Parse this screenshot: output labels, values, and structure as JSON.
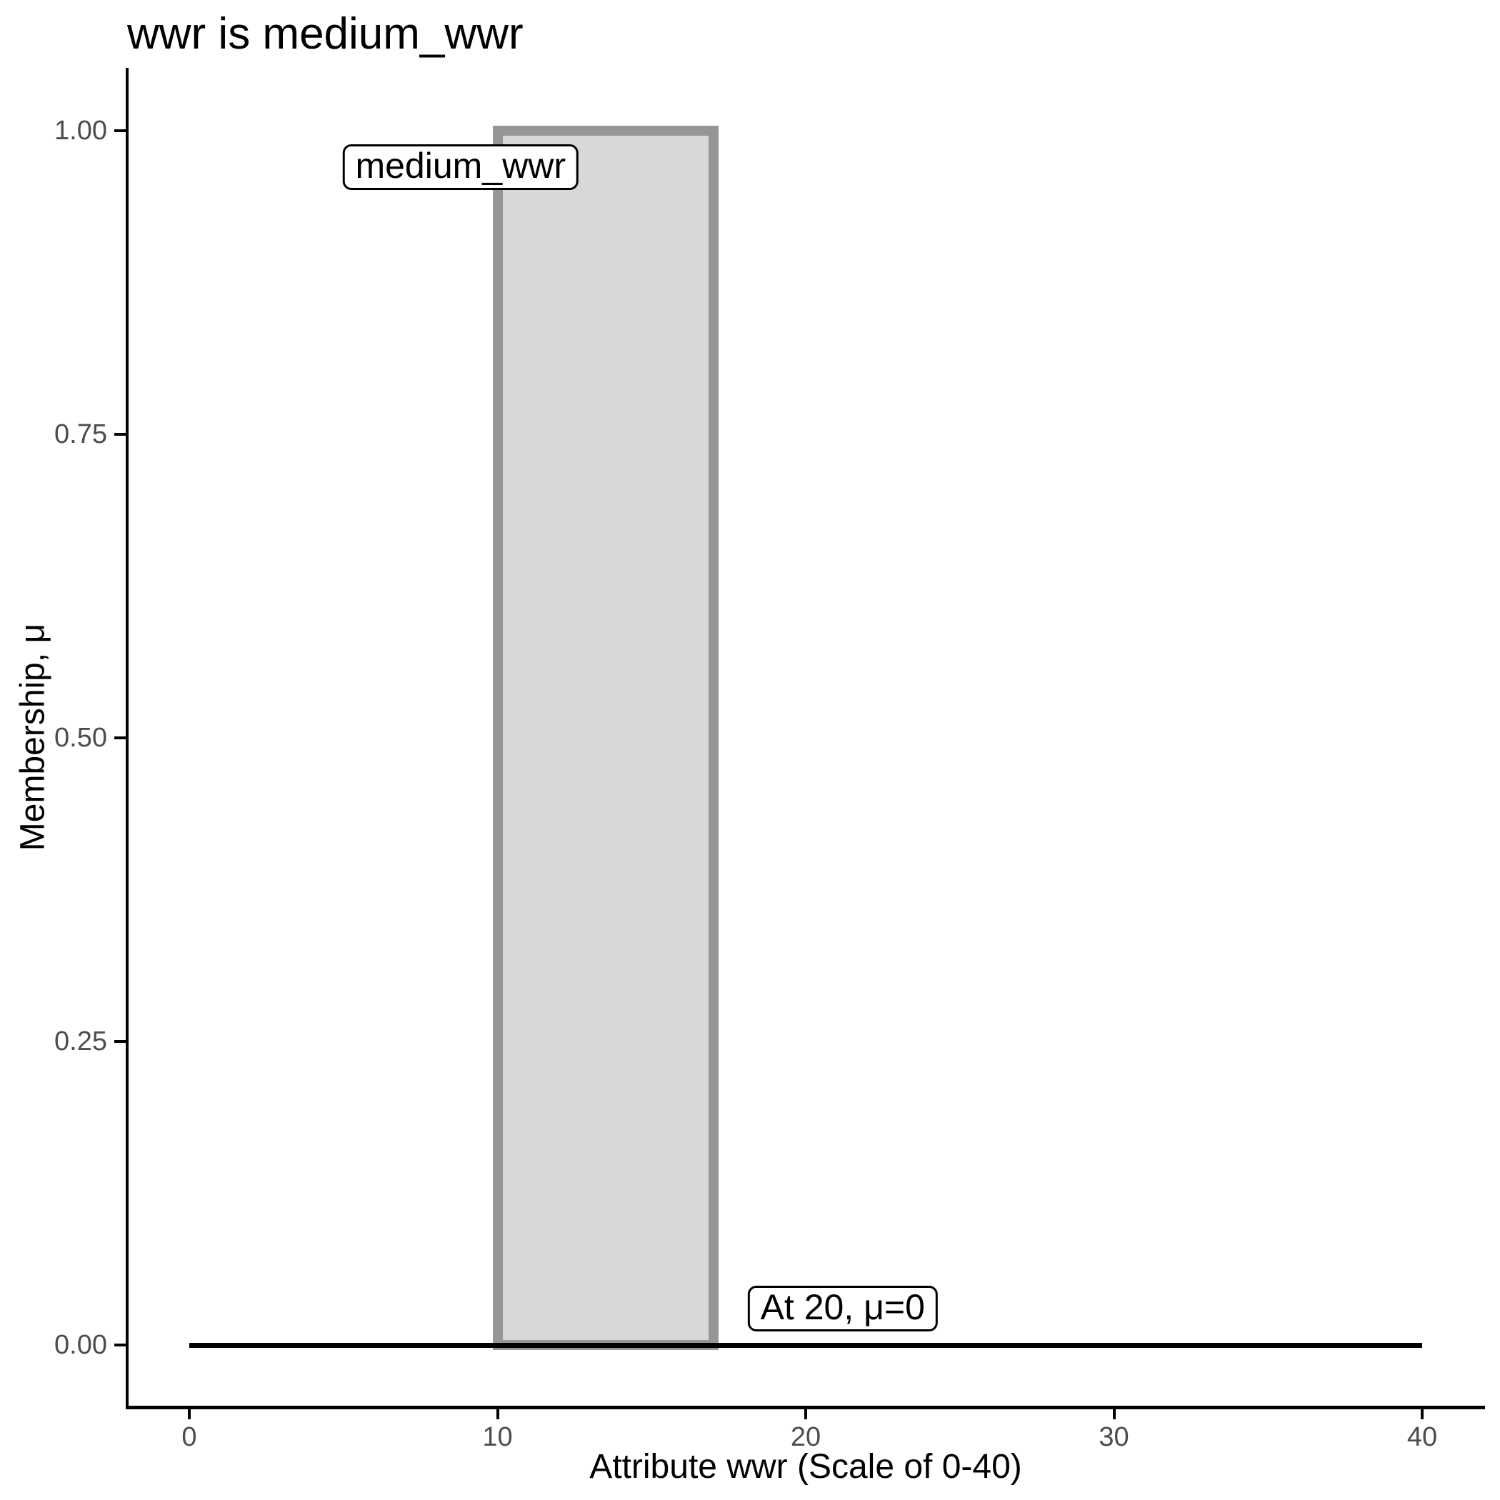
{
  "chart_data": {
    "type": "area",
    "title": "wwr is medium_wwr",
    "xlabel": "Attribute wwr (Scale of 0-40)",
    "ylabel": "Membership, μ",
    "xlim": [
      0,
      40
    ],
    "ylim": [
      0,
      1
    ],
    "grid": false,
    "legend_position": "none",
    "x_ticks": [
      {
        "value": 0,
        "label": "0"
      },
      {
        "value": 10,
        "label": "10"
      },
      {
        "value": 20,
        "label": "20"
      },
      {
        "value": 30,
        "label": "30"
      },
      {
        "value": 40,
        "label": "40"
      }
    ],
    "y_ticks": [
      {
        "value": 1.0,
        "label": "1.00"
      },
      {
        "value": 0.75,
        "label": "0.75"
      },
      {
        "value": 0.5,
        "label": "0.50"
      },
      {
        "value": 0.25,
        "label": "0.25"
      },
      {
        "value": 0.0,
        "label": "0.00"
      }
    ],
    "membership_points": [
      [
        0,
        0
      ],
      [
        10,
        0
      ],
      [
        10,
        1
      ],
      [
        17,
        1
      ],
      [
        17,
        0
      ],
      [
        40,
        0
      ]
    ],
    "membership_rect": {
      "x_start": 10,
      "x_end": 17,
      "mu_min": 0,
      "mu_max": 1,
      "fill": "#d8d8d8",
      "stroke": "#969696"
    },
    "zero_line": {
      "x_start": 0,
      "x_end": 40,
      "mu": 0,
      "color": "#000000"
    },
    "annotations": [
      {
        "text": "medium_wwr",
        "x": 8.8,
        "mu": 0.97
      },
      {
        "text": "At 20, μ=0",
        "x": 21.2,
        "mu": 0.03
      }
    ],
    "colors": {
      "axis_text": "#4d4d4d",
      "axis_line": "#000000",
      "title_text": "#000000"
    }
  }
}
